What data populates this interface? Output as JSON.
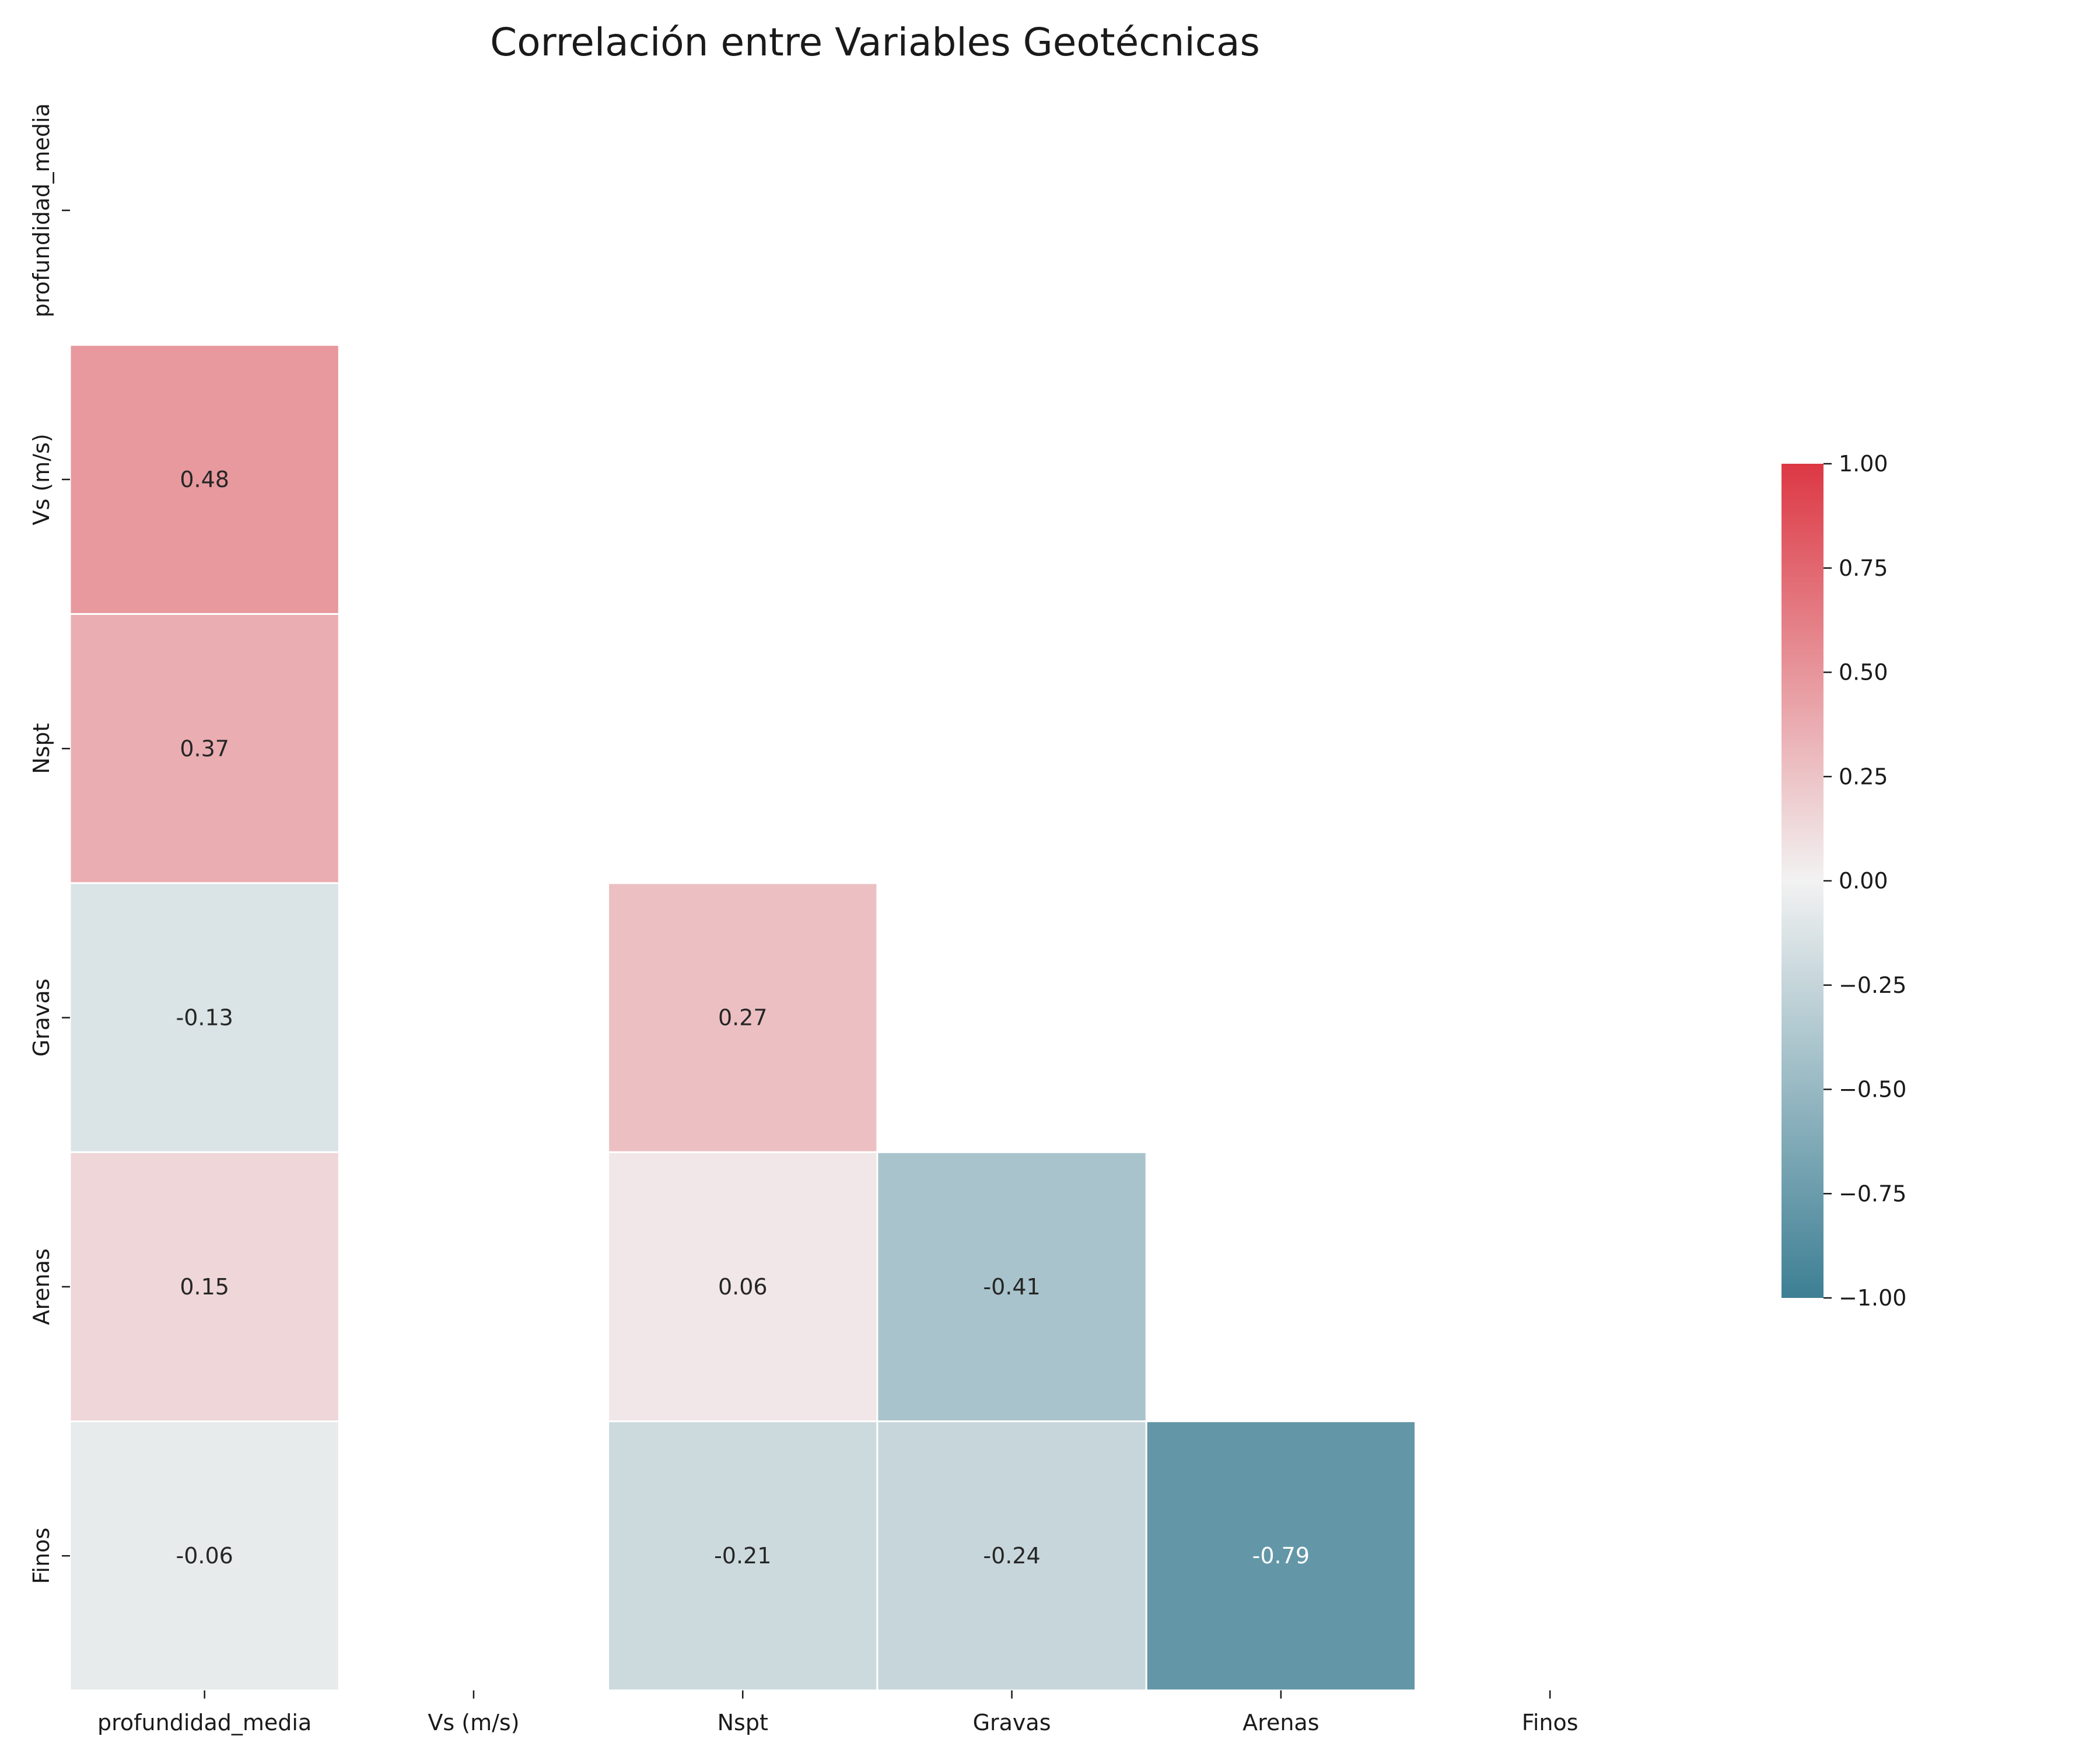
{
  "chart_data": {
    "type": "heatmap",
    "title": "Correlación entre Variables Geotécnicas",
    "variables": [
      "profundidad_media",
      "Vs (m/s)",
      "Nspt",
      "Gravas",
      "Arenas",
      "Finos"
    ],
    "mask": "upper-triangle-including-diagonal",
    "cells": [
      {
        "row": "Vs (m/s)",
        "col": "profundidad_media",
        "value": 0.48,
        "label": "0.48"
      },
      {
        "row": "Nspt",
        "col": "profundidad_media",
        "value": 0.37,
        "label": "0.37"
      },
      {
        "row": "Gravas",
        "col": "profundidad_media",
        "value": -0.13,
        "label": "-0.13"
      },
      {
        "row": "Gravas",
        "col": "Nspt",
        "value": 0.27,
        "label": "0.27"
      },
      {
        "row": "Arenas",
        "col": "profundidad_media",
        "value": 0.15,
        "label": "0.15"
      },
      {
        "row": "Arenas",
        "col": "Nspt",
        "value": 0.06,
        "label": "0.06"
      },
      {
        "row": "Arenas",
        "col": "Gravas",
        "value": -0.41,
        "label": "-0.41"
      },
      {
        "row": "Finos",
        "col": "profundidad_media",
        "value": -0.06,
        "label": "-0.06"
      },
      {
        "row": "Finos",
        "col": "Nspt",
        "value": -0.21,
        "label": "-0.21"
      },
      {
        "row": "Finos",
        "col": "Gravas",
        "value": -0.24,
        "label": "-0.24"
      },
      {
        "row": "Finos",
        "col": "Arenas",
        "value": -0.79,
        "label": "-0.79"
      }
    ],
    "colorbar": {
      "vmin": -1.0,
      "vmax": 1.0,
      "ticks": [
        1.0,
        0.75,
        0.5,
        0.25,
        0.0,
        -0.25,
        -0.5,
        -0.75,
        -1.0
      ],
      "tick_labels": [
        "1.00",
        "0.75",
        "0.50",
        "0.25",
        "0.00",
        "−0.25",
        "−0.50",
        "−0.75",
        "−1.00"
      ],
      "colors": {
        "negative": "#3d7f94",
        "center": "#f2f2f2",
        "positive": "#dc3844"
      }
    },
    "grid": false
  }
}
